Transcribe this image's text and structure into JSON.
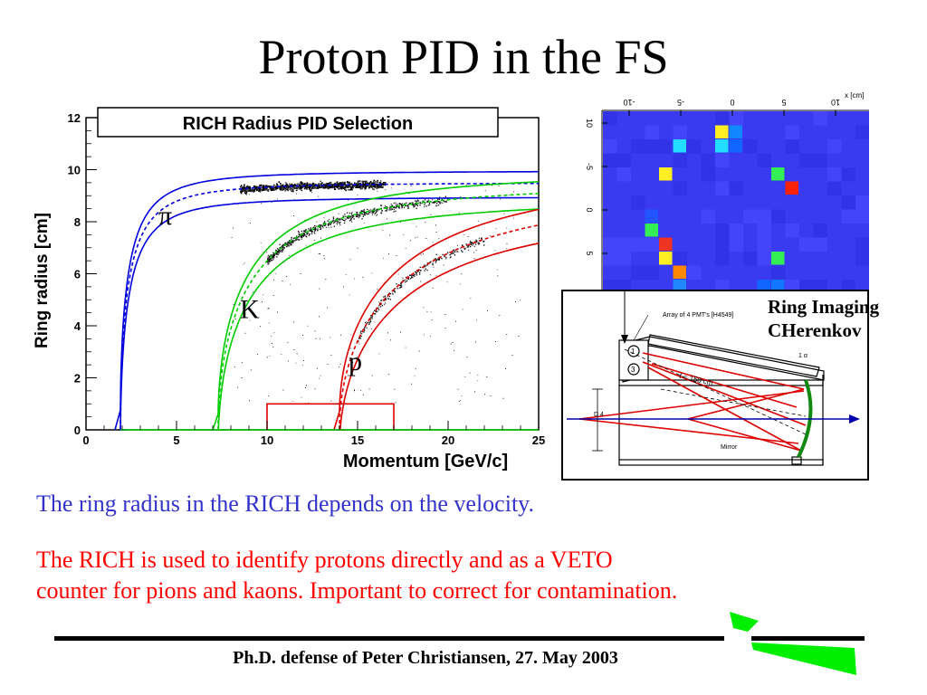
{
  "slide": {
    "title": "Proton PID in the FS",
    "text_blue": "The ring radius in the RICH depends on the velocity.",
    "text_red_line1": "The RICH is used to identify protons directly and as a VETO",
    "text_red_line2": "counter for pions and kaons. Important to correct for contamination.",
    "footer": "Ph.D. defense of Peter Christiansen, 27. May 2003"
  },
  "chart_data": {
    "type": "scatter",
    "title": "RICH Radius PID Selection",
    "xlabel": "Momentum [GeV/c]",
    "ylabel": "Ring radius [cm]",
    "xlim": [
      0,
      25
    ],
    "ylim": [
      0,
      12
    ],
    "xticks": [
      "0",
      "5",
      "10",
      "15",
      "20",
      "25"
    ],
    "yticks": [
      "0",
      "2",
      "4",
      "6",
      "8",
      "10",
      "12"
    ],
    "grid": false,
    "legend": "none",
    "series": [
      {
        "label": "π",
        "label_at": [
          4,
          7.9
        ],
        "threshold": 1.9,
        "r_inf": 9.5,
        "band": [
          -0.55,
          0.45
        ],
        "color": "#0000dd"
      },
      {
        "label": "K",
        "label_at": [
          8.5,
          4.3
        ],
        "threshold": 7.3,
        "r_inf": 9.5,
        "band": [
          -0.6,
          0.45
        ],
        "color": "#00cc00"
      },
      {
        "label": "p",
        "label_at": [
          14.5,
          2.3
        ],
        "threshold": 14.0,
        "r_inf": 9.5,
        "band": [
          -0.7,
          0.6
        ],
        "color": "#dd0000"
      }
    ],
    "proton_cut": {
      "x": [
        10,
        10,
        13.8,
        13.8,
        17,
        17
      ],
      "y": [
        0,
        1,
        1,
        1,
        1,
        0
      ]
    }
  },
  "ring_display": {
    "x_axis_label": "x [cm]",
    "x_ticks": [
      "-10",
      "-5",
      "0",
      "5",
      "10"
    ],
    "y_ticks": [
      "10",
      "-5",
      "0",
      "5"
    ],
    "background_color": "#3a3af0",
    "hits": [
      {
        "col": 8,
        "row": 1,
        "color": "#ffee22"
      },
      {
        "col": 9,
        "row": 1,
        "color": "#1188ff"
      },
      {
        "col": 5,
        "row": 2,
        "color": "#22ddff"
      },
      {
        "col": 8,
        "row": 2,
        "color": "#22ddff"
      },
      {
        "col": 9,
        "row": 2,
        "color": "#1166ff"
      },
      {
        "col": 4,
        "row": 4,
        "color": "#ffee22"
      },
      {
        "col": 12,
        "row": 4,
        "color": "#33ee55"
      },
      {
        "col": 13,
        "row": 5,
        "color": "#ff2200"
      },
      {
        "col": 3,
        "row": 7,
        "color": "#2255ff"
      },
      {
        "col": 3,
        "row": 8,
        "color": "#33ee55"
      },
      {
        "col": 4,
        "row": 9,
        "color": "#ee3322"
      },
      {
        "col": 4,
        "row": 10,
        "color": "#ffee22"
      },
      {
        "col": 12,
        "row": 10,
        "color": "#33ee55"
      },
      {
        "col": 5,
        "row": 11,
        "color": "#ff8800"
      },
      {
        "col": 5,
        "row": 12,
        "color": "#2288ff"
      },
      {
        "col": 11,
        "row": 12,
        "color": "#1166ff"
      },
      {
        "col": 12,
        "row": 12,
        "color": "#1177ff"
      },
      {
        "col": 7,
        "row": 13,
        "color": "#22ddff"
      },
      {
        "col": 9,
        "row": 13,
        "color": "#33ee55"
      }
    ]
  },
  "detector": {
    "caption_line1": "Ring Imaging",
    "caption_line2": "CHerenkov",
    "label_pmts": "Array of 4 PMT's [H4549]",
    "label_mirror": "Mirror",
    "label_focal": "f = 150 cm",
    "label_d": "D 4",
    "label_pmt1": "1",
    "label_pmt2": "3",
    "label_angle": "1 α"
  },
  "colors": {
    "blue_text": "#3333cc",
    "red_text": "#ff0000",
    "logo_green": "#00ee00"
  }
}
